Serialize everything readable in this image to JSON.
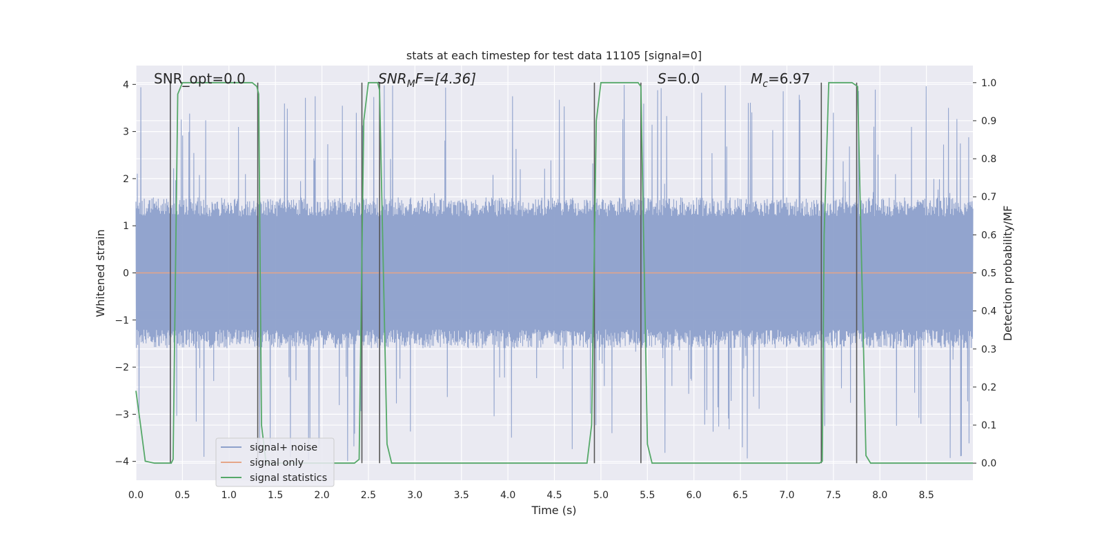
{
  "chart_data": {
    "type": "line",
    "title": "stats at each timestep for test data 11105 [signal=0]",
    "xlabel": "Time (s)",
    "ylabel_left": "Whitened strain",
    "ylabel_right": "Detection probability/MF",
    "xlim": [
      0,
      9.0
    ],
    "ylim_left": [
      -4.4,
      4.4
    ],
    "ylim_right": [
      -0.045,
      1.045
    ],
    "grid": true,
    "legend_placement": "lower-left",
    "x_ticks": [
      "0.0",
      "0.5",
      "1.0",
      "1.5",
      "2.0",
      "2.5",
      "3.0",
      "3.5",
      "4.0",
      "4.5",
      "5.0",
      "5.5",
      "6.0",
      "6.5",
      "7.0",
      "7.5",
      "8.0",
      "8.5"
    ],
    "x_tick_values": [
      0,
      0.5,
      1.0,
      1.5,
      2.0,
      2.5,
      3.0,
      3.5,
      4.0,
      4.5,
      5.0,
      5.5,
      6.0,
      6.5,
      7.0,
      7.5,
      8.0,
      8.5
    ],
    "y_left_ticks": [
      "−4",
      "−3",
      "−2",
      "−1",
      "0",
      "1",
      "2",
      "3",
      "4"
    ],
    "y_left_tick_values": [
      -4,
      -3,
      -2,
      -1,
      0,
      1,
      2,
      3,
      4
    ],
    "y_right_ticks": [
      "0.0",
      "0.1",
      "0.2",
      "0.3",
      "0.4",
      "0.5",
      "0.6",
      "0.7",
      "0.8",
      "0.9",
      "1.0"
    ],
    "y_right_tick_values": [
      0.0,
      0.1,
      0.2,
      0.3,
      0.4,
      0.5,
      0.6,
      0.7,
      0.8,
      0.9,
      1.0
    ],
    "annotations": {
      "snr_opt": "SNR_opt=0.0",
      "snr_mf_main": "SNR",
      "snr_mf_sub": "M",
      "snr_mf_rest": "F=[4.36]",
      "s_main": "S",
      "s_rest": "=0.0",
      "mc_main": "M",
      "mc_sub": "c",
      "mc_rest": "=6.97"
    },
    "colors": {
      "noise": "#8da0cb",
      "signal": "#e5a587",
      "stats": "#55a868",
      "vlines": "#555555",
      "background": "#eaeaf2",
      "grid": "#ffffff"
    },
    "series": [
      {
        "name": "signal+ noise",
        "axis": "left",
        "noise_envelope": {
          "typical_abs": 1.6,
          "peak_abs": 4.0
        }
      },
      {
        "name": "signal only",
        "axis": "left",
        "x": [
          0,
          9.0
        ],
        "y": [
          0,
          0
        ]
      },
      {
        "name": "signal statistics",
        "axis": "right",
        "x": [
          0.0,
          0.05,
          0.1,
          0.2,
          0.3,
          0.38,
          0.4,
          0.42,
          0.45,
          0.5,
          0.6,
          0.8,
          1.0,
          1.2,
          1.25,
          1.3,
          1.32,
          1.35,
          1.4,
          1.5,
          1.8,
          2.1,
          2.35,
          2.4,
          2.45,
          2.5,
          2.6,
          2.62,
          2.7,
          2.75,
          3.0,
          3.5,
          4.0,
          4.5,
          4.85,
          4.9,
          4.95,
          5.0,
          5.1,
          5.3,
          5.4,
          5.43,
          5.5,
          5.55,
          6.0,
          6.5,
          7.0,
          7.35,
          7.38,
          7.4,
          7.45,
          7.6,
          7.7,
          7.76,
          7.85,
          7.9,
          8.0,
          8.5,
          9.0
        ],
        "y": [
          0.19,
          0.1,
          0.005,
          0.0,
          0.0,
          0.0,
          0.01,
          0.4,
          0.97,
          1.0,
          1.0,
          1.0,
          1.0,
          1.0,
          1.0,
          0.99,
          0.97,
          0.1,
          0.0,
          0.0,
          0.0,
          0.0,
          0.0,
          0.01,
          0.9,
          1.0,
          1.0,
          0.98,
          0.05,
          0.0,
          0.0,
          0.0,
          0.0,
          0.0,
          0.0,
          0.1,
          0.9,
          1.0,
          1.0,
          1.0,
          1.0,
          0.99,
          0.05,
          0.0,
          0.0,
          0.0,
          0.0,
          0.0,
          0.005,
          0.6,
          1.0,
          1.0,
          1.0,
          0.99,
          0.02,
          0.0,
          0.0,
          0.0,
          0.0
        ]
      }
    ],
    "vertical_lines_x": [
      0.37,
      1.31,
      2.43,
      2.62,
      4.93,
      5.43,
      7.37,
      7.75
    ]
  }
}
